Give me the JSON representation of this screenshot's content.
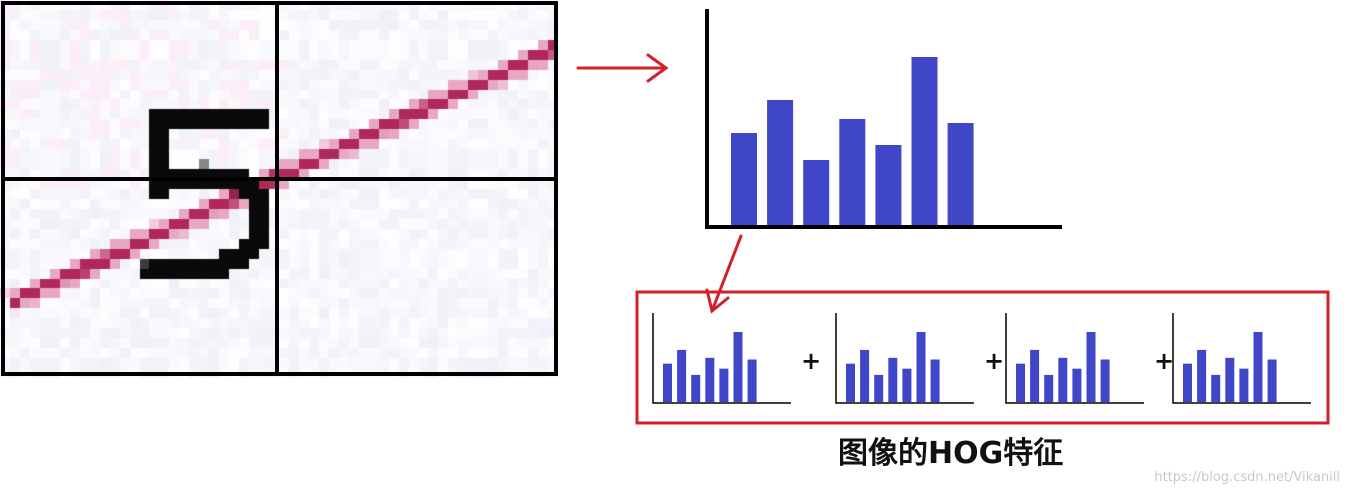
{
  "cell_image": {
    "digit": "5",
    "colors": {
      "grid": "#000000",
      "stroke": "#b02858",
      "digit": "#0a0a0a",
      "background": "#f2f4fb"
    }
  },
  "histogram": {
    "bar_color": "#4046c8",
    "axis_color": "#000000",
    "values": [
      92,
      125,
      65,
      106,
      80,
      168,
      102
    ]
  },
  "combined": {
    "border_color": "#d0202a",
    "plus_symbol": "+",
    "mini_histograms": [
      {
        "values": [
          92,
          125,
          65,
          106,
          80,
          168,
          102
        ]
      },
      {
        "values": [
          92,
          125,
          65,
          106,
          80,
          168,
          102
        ]
      },
      {
        "values": [
          92,
          125,
          65,
          106,
          80,
          168,
          102
        ]
      },
      {
        "values": [
          92,
          125,
          65,
          106,
          80,
          168,
          102
        ]
      }
    ]
  },
  "arrows": {
    "color": "#d0202a"
  },
  "caption": "图像的HOG特征",
  "watermark": "https://blog.csdn.net/Vikanill"
}
